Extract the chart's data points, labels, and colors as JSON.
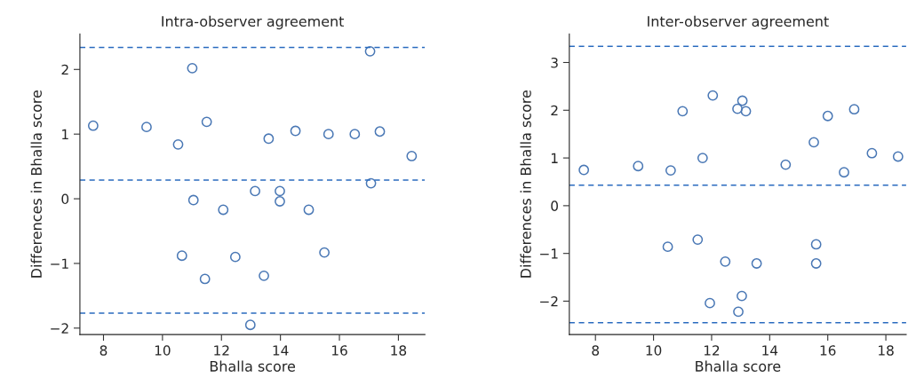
{
  "chart_data": [
    {
      "type": "scatter",
      "title": "Intra-observer agreement",
      "xlabel": "Bhalla score",
      "ylabel": "Differences in Bhalla score",
      "series": [
        {
          "color": "#4a78b5",
          "x": [
            7.65,
            9.46,
            10.53,
            11.01,
            11.5,
            11.05,
            10.66,
            11.44,
            12.06,
            12.47,
            13.14,
            12.98,
            13.44,
            13.6,
            13.98,
            13.98,
            14.51,
            14.96,
            15.49,
            15.63,
            16.52,
            17.04,
            17.07,
            17.37,
            18.45
          ],
          "values": [
            1.13,
            1.11,
            0.84,
            2.02,
            1.19,
            -0.02,
            -0.88,
            -1.24,
            -0.17,
            -0.9,
            0.12,
            -1.95,
            -1.19,
            0.93,
            0.12,
            -0.04,
            1.05,
            -0.17,
            -0.83,
            1.0,
            1.0,
            2.28,
            0.24,
            1.04,
            0.66
          ]
        }
      ],
      "ref_lines": [
        {
          "axis": "y",
          "value": 2.34,
          "color": "#2a6bbf",
          "line_style": "dashed"
        },
        {
          "axis": "y",
          "value": 0.29,
          "color": "#2a6bbf",
          "line_style": "dashed"
        },
        {
          "axis": "y",
          "value": -1.77,
          "color": "#2a6bbf",
          "line_style": "dashed"
        }
      ],
      "xlim": [
        7.2,
        18.9
      ],
      "xticks": [
        8,
        10,
        12,
        14,
        16,
        18
      ],
      "ylim": [
        -2.1,
        2.55
      ],
      "yticks": [
        2,
        1,
        0,
        -1,
        -2
      ],
      "grid": false,
      "legend": false,
      "marker": "circle"
    },
    {
      "type": "scatter",
      "title": "Inter-observer agreement",
      "xlabel": "Bhalla score",
      "ylabel": "Differences in Bhalla score",
      "series": [
        {
          "color": "#4a78b5",
          "x": [
            7.6,
            9.47,
            10.59,
            10.49,
            11.0,
            11.52,
            11.69,
            12.04,
            11.94,
            12.47,
            12.89,
            13.06,
            13.18,
            13.04,
            12.92,
            13.55,
            14.55,
            15.52,
            15.6,
            15.6,
            16.0,
            16.56,
            16.91,
            17.52,
            18.42
          ],
          "values": [
            0.75,
            0.83,
            0.74,
            -0.86,
            1.98,
            -0.71,
            1.0,
            2.31,
            -2.04,
            -1.17,
            2.03,
            2.2,
            1.98,
            -1.89,
            -2.22,
            -1.21,
            0.86,
            1.33,
            -0.81,
            -1.21,
            1.88,
            0.7,
            2.02,
            1.1,
            1.03
          ]
        }
      ],
      "ref_lines": [
        {
          "axis": "y",
          "value": 3.34,
          "color": "#2a6bbf",
          "line_style": "dashed"
        },
        {
          "axis": "y",
          "value": 0.43,
          "color": "#2a6bbf",
          "line_style": "dashed"
        },
        {
          "axis": "y",
          "value": -2.45,
          "color": "#2a6bbf",
          "line_style": "dashed"
        }
      ],
      "xlim": [
        7.1,
        18.7
      ],
      "xticks": [
        8,
        10,
        12,
        14,
        16,
        18
      ],
      "ylim": [
        -2.7,
        3.6
      ],
      "yticks": [
        3,
        2,
        1,
        0,
        -1,
        -2
      ],
      "grid": false,
      "legend": false,
      "marker": "circle"
    }
  ]
}
